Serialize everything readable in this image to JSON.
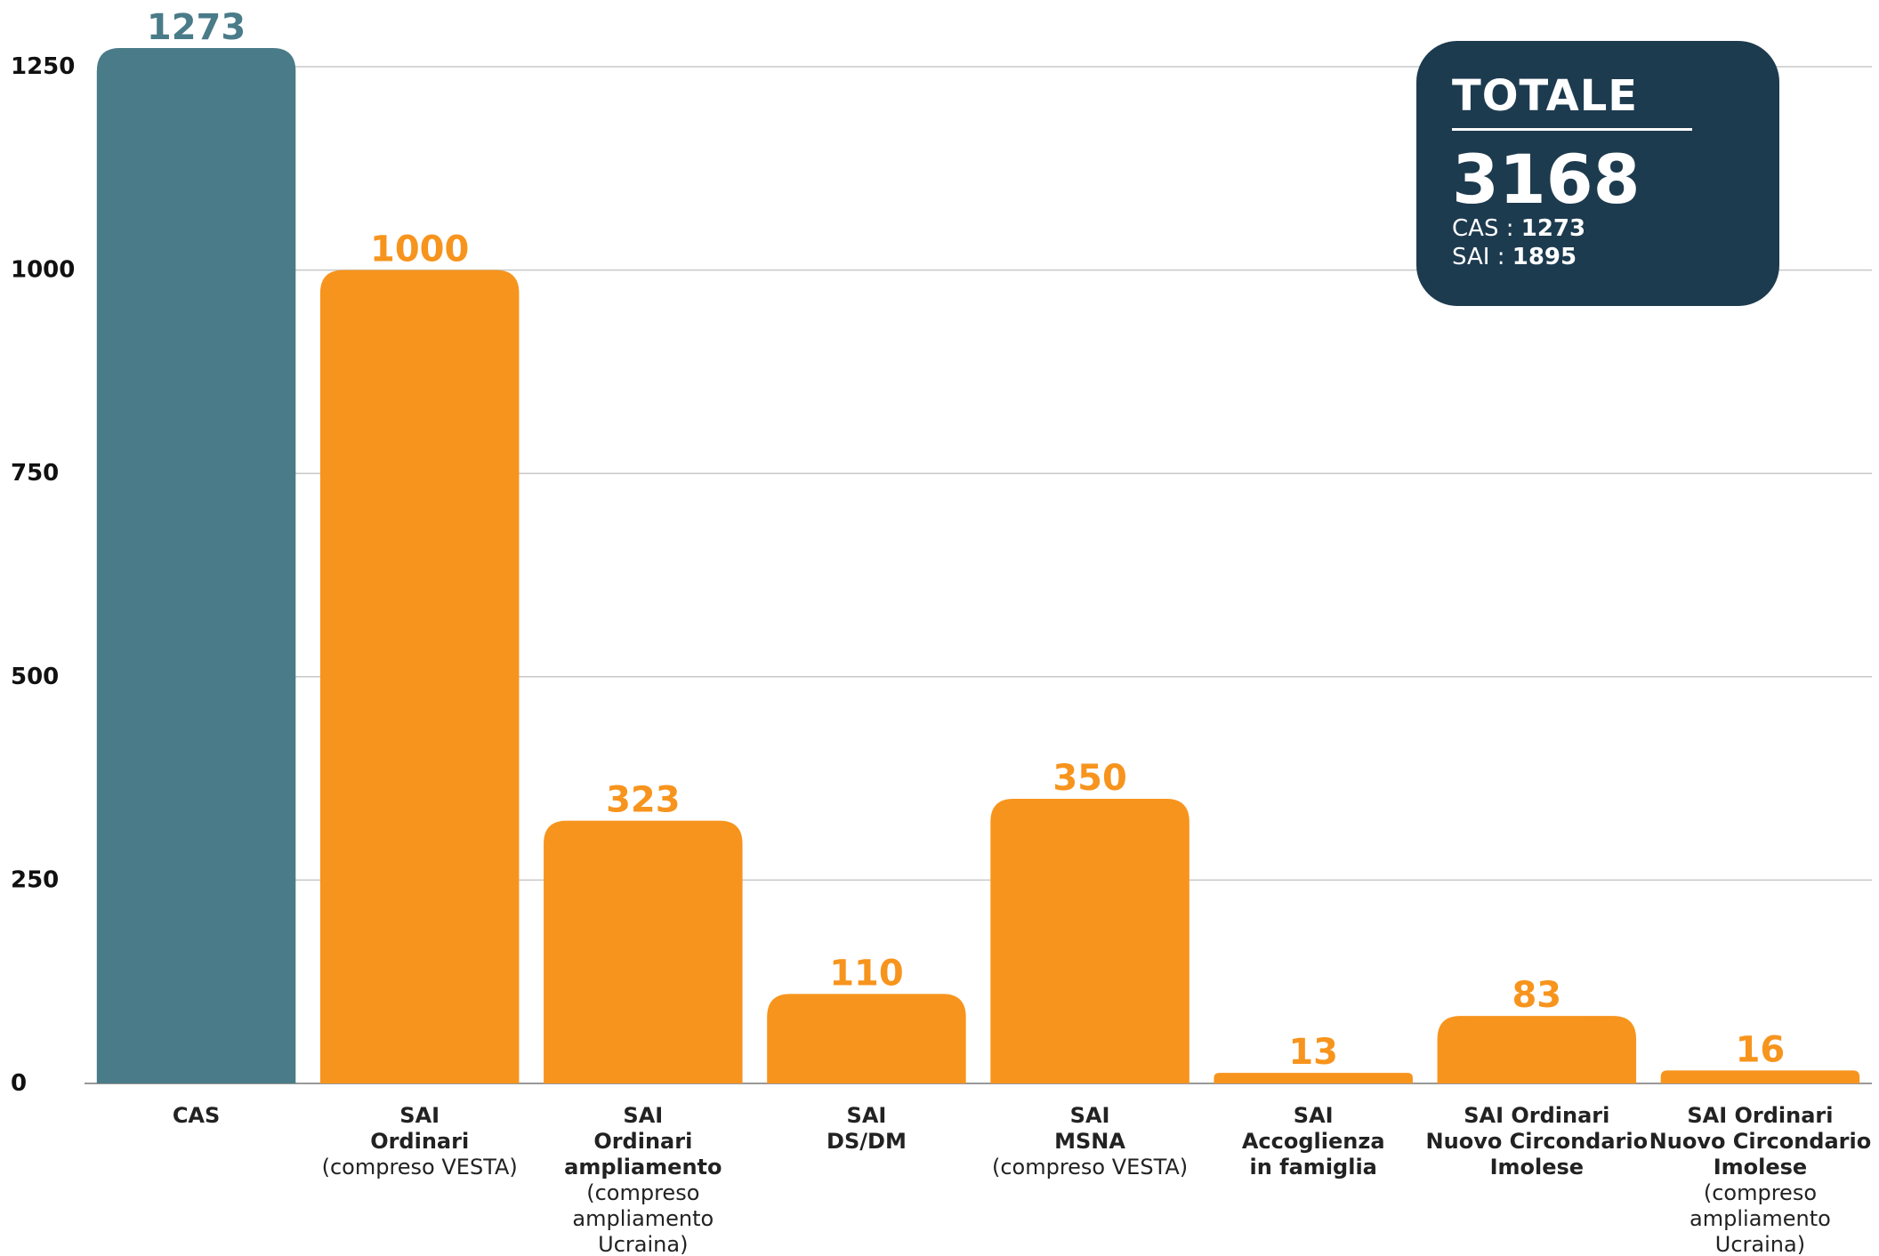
{
  "chart_data": {
    "type": "bar",
    "categories": [
      [
        "CAS"
      ],
      [
        "SAI",
        "Ordinari",
        "(compreso VESTA)"
      ],
      [
        "SAI",
        "Ordinari",
        "ampliamento",
        "(compreso",
        "ampliamento",
        "Ucraina)"
      ],
      [
        "SAI",
        "DS/DM"
      ],
      [
        "SAI",
        "MSNA",
        "(compreso VESTA)"
      ],
      [
        "SAI",
        "Accoglienza",
        "in famiglia"
      ],
      [
        "SAI Ordinari",
        "Nuovo Circondario",
        "Imolese"
      ],
      [
        "SAI Ordinari",
        "Nuovo Circondario",
        "Imolese",
        "(compreso",
        "ampliamento",
        "Ucraina)"
      ]
    ],
    "category_bold_lines": [
      1,
      2,
      3,
      2,
      2,
      3,
      3,
      3
    ],
    "values": [
      1273,
      1000,
      323,
      110,
      350,
      13,
      83,
      16
    ],
    "value_labels": [
      "1273",
      "1000",
      "323",
      "110",
      "350",
      "13",
      "83",
      "16"
    ],
    "bar_colors": [
      "#4a7b88",
      "#f7941d",
      "#f7941d",
      "#f7941d",
      "#f7941d",
      "#f7941d",
      "#f7941d",
      "#f7941d"
    ],
    "y_ticks": [
      0,
      250,
      500,
      750,
      1000,
      1250
    ],
    "ylim": [
      0,
      1250
    ],
    "grid": true,
    "legend": "none"
  },
  "summary": {
    "title": "TOTALE",
    "total": "3168",
    "lines": [
      {
        "label": "CAS : ",
        "value": "1273"
      },
      {
        "label": "SAI : ",
        "value": "1895"
      }
    ],
    "box_color": "#1d3b4f"
  }
}
